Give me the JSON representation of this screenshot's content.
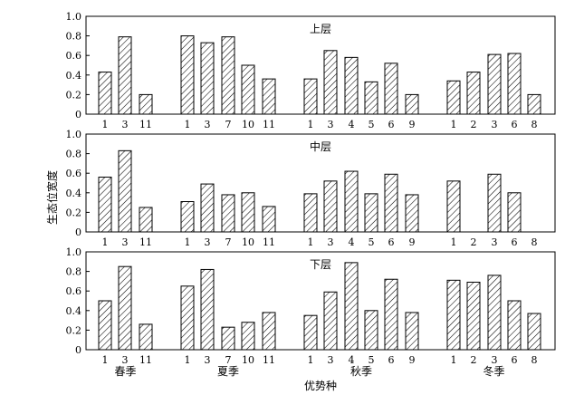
{
  "chart_data": {
    "type": "bar",
    "ylabel": "生态位宽度",
    "xlabel": "优势种",
    "ylim": [
      0,
      1.0
    ],
    "yticks": [
      "0",
      "0.2",
      "0.4",
      "0.6",
      "0.8",
      "1.0"
    ],
    "seasons": [
      {
        "name": "春季",
        "species": [
          "1",
          "3",
          "11"
        ]
      },
      {
        "name": "夏季",
        "species": [
          "1",
          "3",
          "7",
          "10",
          "11"
        ]
      },
      {
        "name": "秋季",
        "species": [
          "1",
          "3",
          "4",
          "5",
          "6",
          "9"
        ]
      },
      {
        "name": "冬季",
        "species": [
          "1",
          "2",
          "3",
          "6",
          "8"
        ]
      }
    ],
    "bar_fill": "hatched",
    "panels": [
      {
        "title": "上层",
        "values": [
          [
            0.43,
            0.79,
            0.2
          ],
          [
            0.8,
            0.73,
            0.79,
            0.5,
            0.36
          ],
          [
            0.36,
            0.65,
            0.58,
            0.33,
            0.52,
            0.2
          ],
          [
            0.34,
            0.43,
            0.61,
            0.62,
            0.2
          ]
        ]
      },
      {
        "title": "中层",
        "values": [
          [
            0.56,
            0.83,
            0.25
          ],
          [
            0.31,
            0.49,
            0.38,
            0.4,
            0.26
          ],
          [
            0.39,
            0.52,
            0.62,
            0.39,
            0.59,
            0.38
          ],
          [
            0.52,
            0,
            0.59,
            0.4,
            0
          ]
        ]
      },
      {
        "title": "下层",
        "values": [
          [
            0.5,
            0.85,
            0.26
          ],
          [
            0.65,
            0.82,
            0.23,
            0.28,
            0.38
          ],
          [
            0.35,
            0.59,
            0.89,
            0.4,
            0.72,
            0.38
          ],
          [
            0.71,
            0.69,
            0.76,
            0.5,
            0.37
          ]
        ]
      }
    ]
  }
}
